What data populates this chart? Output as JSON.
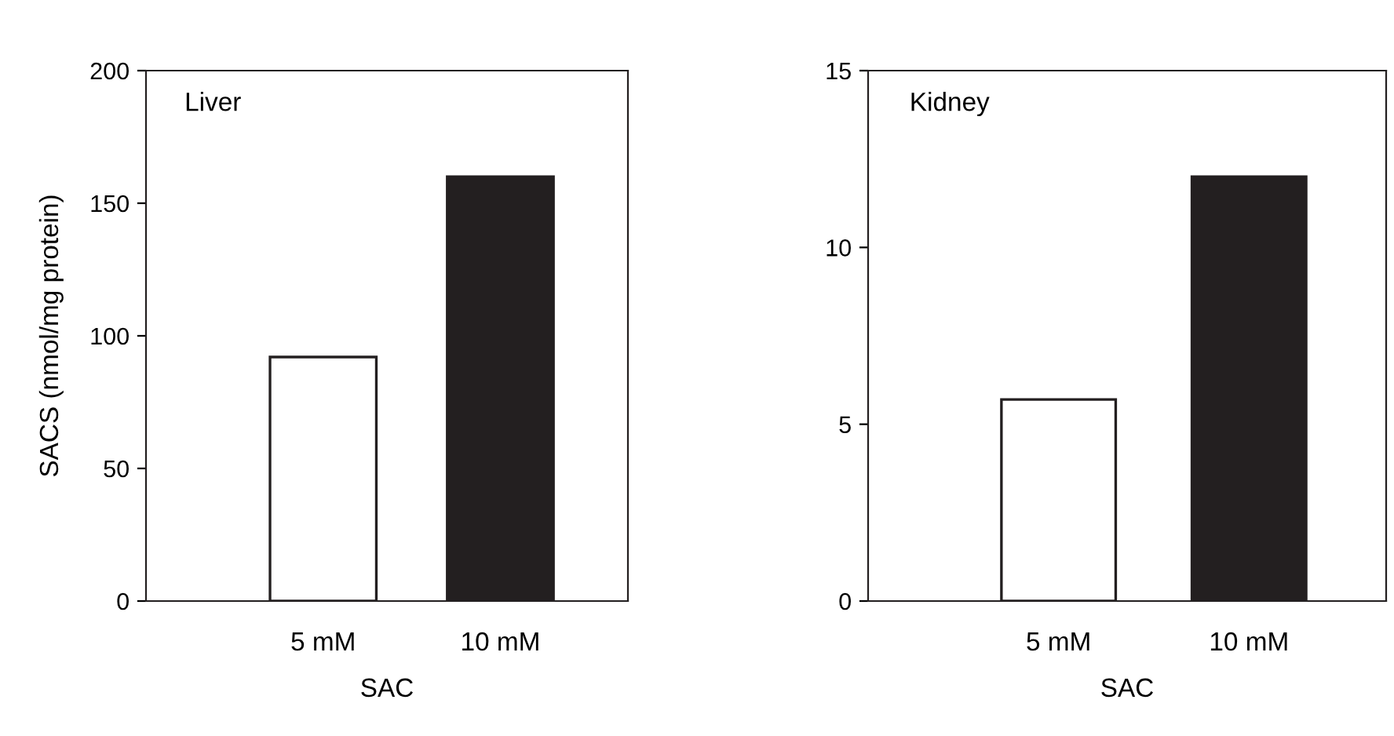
{
  "chart_data": [
    {
      "type": "bar",
      "title": "Liver",
      "categories": [
        "5 mM",
        "10 mM"
      ],
      "values": [
        92,
        160
      ],
      "colors": [
        "#ffffff",
        "#231f20"
      ],
      "xlabel": "SAC",
      "ylabel": "SACS (nmol/mg protein)",
      "ylim": [
        0,
        200
      ],
      "yticks": [
        0,
        50,
        100,
        150,
        200
      ],
      "grid": false
    },
    {
      "type": "bar",
      "title": "Kidney",
      "categories": [
        "5 mM",
        "10 mM"
      ],
      "values": [
        5.7,
        12.0
      ],
      "colors": [
        "#ffffff",
        "#231f20"
      ],
      "xlabel": "SAC",
      "ylim": [
        0,
        15
      ],
      "yticks": [
        0,
        5,
        10,
        15
      ],
      "grid": false
    }
  ]
}
